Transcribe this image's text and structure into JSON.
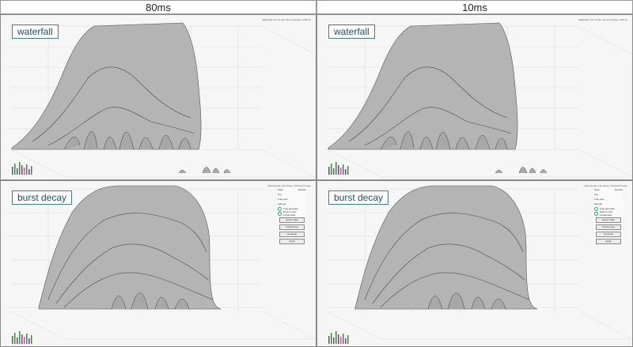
{
  "columns": [
    {
      "heading": "80ms"
    },
    {
      "heading": "10ms"
    }
  ],
  "panels": [
    {
      "tag": "waterfall",
      "info": "Waterfall, 0.5 ms rise, 80 ms window, 2 dB cut"
    },
    {
      "tag": "waterfall",
      "info": "Waterfall, 0.5 ms rise, 10 ms window, 2 dB cut"
    },
    {
      "tag": "burst decay",
      "info": "Burst decay, 1/6 octave, 100 period span",
      "controls": {
        "style_label": "Style",
        "style_value": "Surface",
        "top_label": "Top",
        "freq_axis_label": "Freq axis",
        "sample_label": "Sample",
        "opt1": "Auto generate",
        "opt2": "Show in sub-frequencies",
        "btn1": "Export data",
        "btn2": "Preferences",
        "btn3": "Generate",
        "btn4": "Apply"
      }
    },
    {
      "tag": "burst decay",
      "info": "Burst decay, 1/6 octave, 100 period span",
      "controls": {
        "style_label": "Style",
        "style_value": "Surface",
        "top_label": "Top",
        "freq_axis_label": "Freq axis",
        "sample_label": "Sample",
        "opt1": "Auto generate",
        "opt2": "Show in sub-frequencies",
        "btn1": "Export data",
        "btn2": "Preferences",
        "btn3": "Generate",
        "btn4": "Apply"
      }
    }
  ],
  "colors": {
    "surface": "#b4b4b4",
    "surface_edge": "#3c3c3c",
    "grid": "#d8d8d8",
    "tag_border": "#3f7f86"
  }
}
